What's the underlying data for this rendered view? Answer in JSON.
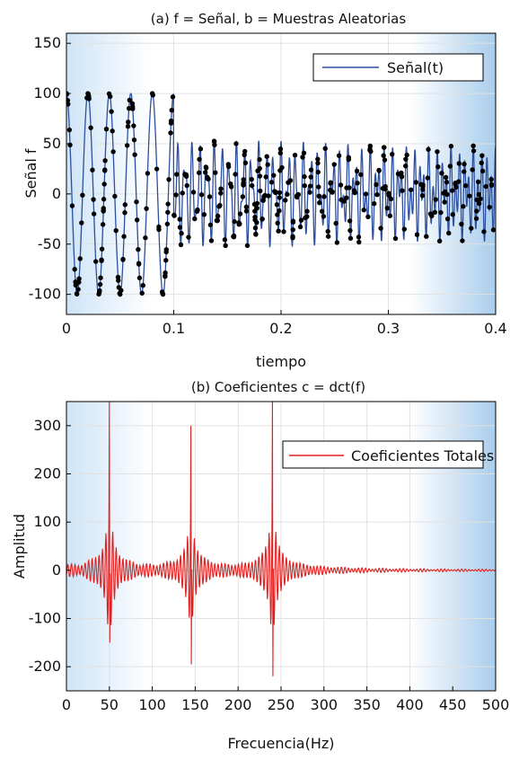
{
  "chart_data": [
    {
      "type": "line",
      "title": "(a)  f = Señal, b = Muestras Aleatorias",
      "xlabel": "tiempo",
      "ylabel": "Señal f",
      "xlim": [
        0,
        0.4
      ],
      "ylim": [
        -120,
        160
      ],
      "xticks": [
        "0",
        "0.1",
        "0.2",
        "0.3",
        "0.4"
      ],
      "yticks": [
        "-100",
        "-50",
        "0",
        "50",
        "100",
        "150"
      ],
      "grid": true,
      "legend_position": "top-right",
      "series": [
        {
          "name": "Señal(t)",
          "color": "#2c4fa0",
          "description": "sum of three sinusoids",
          "segments": [
            {
              "t_range": [
                0,
                0.1
              ],
              "components": [
                {
                  "freq_hz": 50,
                  "amplitude": 100,
                  "phase": "cos"
                }
              ]
            },
            {
              "t_range": [
                0.1,
                0.2
              ],
              "components": [
                {
                  "freq_hz": 50,
                  "amplitude": 0
                },
                {
                  "freq_hz": 145,
                  "amplitude": 0
                }
              ]
            },
            {
              "t_range": [
                0.2,
                0.3
              ],
              "components": [
                {
                  "freq_hz": 240,
                  "amplitude": 50
                }
              ]
            },
            {
              "t_range": [
                0.3,
                0.4
              ],
              "components": [
                {
                  "freq_hz": 240,
                  "amplitude": 50
                }
              ]
            }
          ]
        },
        {
          "name": "Muestras Aleatorias",
          "color": "#000000",
          "marker": "dot",
          "count": 400,
          "description": "random samples of the signal"
        }
      ]
    },
    {
      "type": "line",
      "title": "(b) Coeficientes c = dct(f)",
      "xlabel": "Frecuencia(Hz)",
      "ylabel": "Amplitud",
      "xlim": [
        0,
        500
      ],
      "ylim": [
        -250,
        350
      ],
      "xticks": [
        "0",
        "50",
        "100",
        "150",
        "200",
        "250",
        "300",
        "350",
        "400",
        "450",
        "500"
      ],
      "yticks": [
        "-200",
        "-100",
        "0",
        "100",
        "200",
        "300"
      ],
      "grid": true,
      "legend_position": "top-right",
      "series": [
        {
          "name": "Coeficientes Totales",
          "color": "#e02020",
          "peaks": [
            {
              "freq_hz": 50,
              "value": 350,
              "min": -150
            },
            {
              "freq_hz": 145,
              "value": 300,
              "min": -195
            },
            {
              "freq_hz": 240,
              "value": 360,
              "min": -220
            }
          ]
        }
      ]
    }
  ]
}
